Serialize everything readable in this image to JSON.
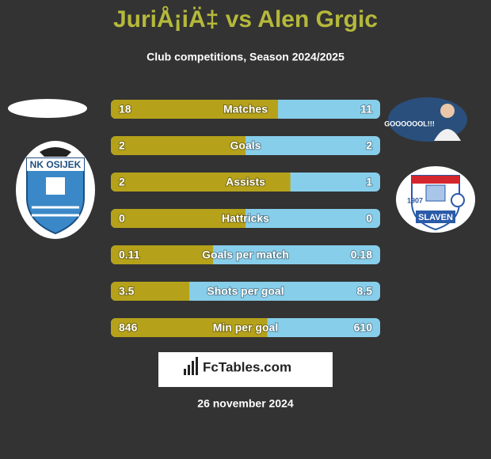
{
  "header": {
    "title": "JuriÅ¡iÄ‡ vs Alen Grgic",
    "subtitle": "Club competitions, Season 2024/2025"
  },
  "left_logo": {
    "text": "NK OSIJEK"
  },
  "right_photo": {
    "text": "GOOOOOOL!!!"
  },
  "right_logo": {
    "year": "1907",
    "text": "SLAVEN"
  },
  "rows": [
    {
      "label": "Matches",
      "left": 18,
      "right": 11
    },
    {
      "label": "Goals",
      "left": 2,
      "right": 2
    },
    {
      "label": "Assists",
      "left": 2,
      "right": 1
    },
    {
      "label": "Hattricks",
      "left": 0,
      "right": 0
    },
    {
      "label": "Goals per match",
      "left": 0.11,
      "right": 0.18
    },
    {
      "label": "Shots per goal",
      "left": 3.5,
      "right": 8.5
    },
    {
      "label": "Min per goal",
      "left": 846,
      "right": 610
    }
  ],
  "footer": {
    "brand": "FcTables.com",
    "date": "26 november 2024"
  }
}
